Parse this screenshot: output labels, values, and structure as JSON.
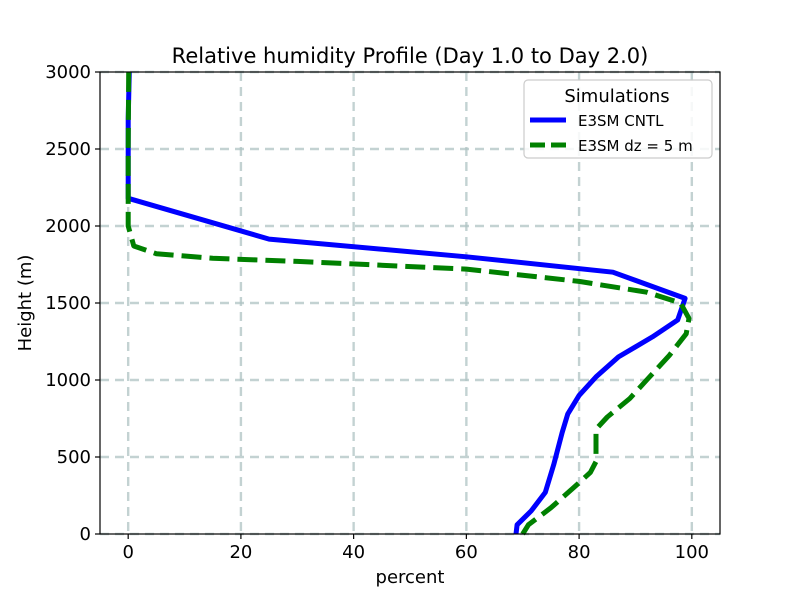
{
  "chart_data": {
    "type": "line",
    "title": "Relative humidity Profile (Day 1.0 to Day 2.0)",
    "xlabel": "percent",
    "ylabel": "Height (m)",
    "xlim": [
      -5,
      105
    ],
    "ylim": [
      0,
      3000
    ],
    "xticks": [
      0,
      20,
      40,
      60,
      80,
      100
    ],
    "yticks": [
      0,
      500,
      1000,
      1500,
      2000,
      2500,
      3000
    ],
    "grid": true,
    "legend": {
      "title": "Simulations",
      "placement": "top-right"
    },
    "series": [
      {
        "name": "E3SM CNTL",
        "color": "#0000ff",
        "style": "solid",
        "points": [
          {
            "x": 68.8,
            "y": 0
          },
          {
            "x": 69.0,
            "y": 60
          },
          {
            "x": 71.5,
            "y": 150
          },
          {
            "x": 74.0,
            "y": 270
          },
          {
            "x": 75.5,
            "y": 450
          },
          {
            "x": 77.0,
            "y": 660
          },
          {
            "x": 78.0,
            "y": 780
          },
          {
            "x": 80.0,
            "y": 900
          },
          {
            "x": 83.0,
            "y": 1020
          },
          {
            "x": 87.0,
            "y": 1150
          },
          {
            "x": 93.0,
            "y": 1280
          },
          {
            "x": 97.5,
            "y": 1390
          },
          {
            "x": 98.8,
            "y": 1530
          },
          {
            "x": 86.0,
            "y": 1700
          },
          {
            "x": 60.0,
            "y": 1800
          },
          {
            "x": 25.0,
            "y": 1915
          },
          {
            "x": 0.0,
            "y": 2180
          },
          {
            "x": 0.0,
            "y": 2700
          },
          {
            "x": 0.2,
            "y": 3000
          }
        ]
      },
      {
        "name": "E3SM dz = 5 m",
        "color": "#008000",
        "style": "dashed",
        "points": [
          {
            "x": 70.0,
            "y": 0
          },
          {
            "x": 71.0,
            "y": 60
          },
          {
            "x": 75.0,
            "y": 170
          },
          {
            "x": 79.0,
            "y": 300
          },
          {
            "x": 82.0,
            "y": 400
          },
          {
            "x": 83.0,
            "y": 470
          },
          {
            "x": 83.0,
            "y": 570
          },
          {
            "x": 83.0,
            "y": 680
          },
          {
            "x": 85.0,
            "y": 760
          },
          {
            "x": 89.0,
            "y": 880
          },
          {
            "x": 92.0,
            "y": 1000
          },
          {
            "x": 96.0,
            "y": 1160
          },
          {
            "x": 99.0,
            "y": 1300
          },
          {
            "x": 99.5,
            "y": 1400
          },
          {
            "x": 98.0,
            "y": 1500
          },
          {
            "x": 92.0,
            "y": 1570
          },
          {
            "x": 80.0,
            "y": 1640
          },
          {
            "x": 60.0,
            "y": 1720
          },
          {
            "x": 30.0,
            "y": 1770
          },
          {
            "x": 15.0,
            "y": 1790
          },
          {
            "x": 5.0,
            "y": 1820
          },
          {
            "x": 1.0,
            "y": 1870
          },
          {
            "x": 0.0,
            "y": 2000
          },
          {
            "x": 0.0,
            "y": 2200
          },
          {
            "x": 0.0,
            "y": 2500
          },
          {
            "x": 0.1,
            "y": 3000
          }
        ]
      }
    ]
  }
}
